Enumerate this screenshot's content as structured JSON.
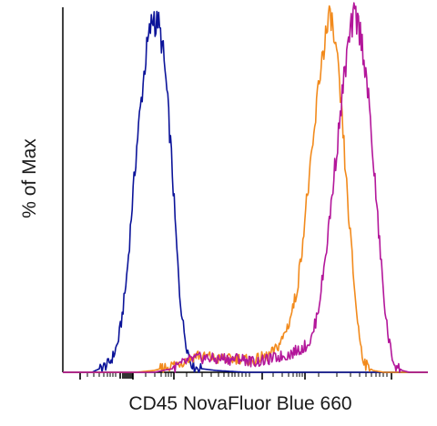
{
  "chart_data": {
    "type": "line",
    "title": "",
    "xlabel": "CD45 NovaFluor Blue 660",
    "ylabel": "% of Max",
    "x_scale": "log",
    "x_ticks_labeled": false,
    "y_ticks_labeled": false,
    "grid": false,
    "legend": "none",
    "series": [
      {
        "color": "#0b1399",
        "points": [
          [
            0.0,
            0
          ],
          [
            0.02,
            0
          ],
          [
            0.05,
            0
          ],
          [
            0.08,
            0
          ],
          [
            0.1,
            1
          ],
          [
            0.12,
            2
          ],
          [
            0.13,
            3
          ],
          [
            0.14,
            5
          ],
          [
            0.15,
            8
          ],
          [
            0.155,
            11
          ],
          [
            0.16,
            14
          ],
          [
            0.165,
            18
          ],
          [
            0.17,
            22
          ],
          [
            0.175,
            27
          ],
          [
            0.18,
            33
          ],
          [
            0.185,
            40
          ],
          [
            0.19,
            47
          ],
          [
            0.195,
            53
          ],
          [
            0.2,
            60
          ],
          [
            0.205,
            66
          ],
          [
            0.21,
            71
          ],
          [
            0.215,
            76
          ],
          [
            0.22,
            81
          ],
          [
            0.225,
            86
          ],
          [
            0.23,
            90
          ],
          [
            0.235,
            93
          ],
          [
            0.24,
            96
          ],
          [
            0.245,
            98
          ],
          [
            0.25,
            100
          ],
          [
            0.255,
            96
          ],
          [
            0.26,
            99
          ],
          [
            0.265,
            95
          ],
          [
            0.27,
            93
          ],
          [
            0.275,
            89
          ],
          [
            0.28,
            84
          ],
          [
            0.285,
            78
          ],
          [
            0.29,
            71
          ],
          [
            0.295,
            64
          ],
          [
            0.3,
            56
          ],
          [
            0.305,
            47
          ],
          [
            0.31,
            38
          ],
          [
            0.315,
            30
          ],
          [
            0.32,
            22
          ],
          [
            0.33,
            13
          ],
          [
            0.34,
            7
          ],
          [
            0.35,
            3
          ],
          [
            0.36,
            1.5
          ],
          [
            0.38,
            1
          ],
          [
            0.42,
            0.5
          ],
          [
            0.5,
            0
          ],
          [
            0.7,
            0
          ],
          [
            0.85,
            0
          ],
          [
            1.0,
            0
          ]
        ]
      },
      {
        "color": "#f28a1c",
        "points": [
          [
            0.0,
            0
          ],
          [
            0.2,
            0
          ],
          [
            0.25,
            0.5
          ],
          [
            0.3,
            2
          ],
          [
            0.33,
            3
          ],
          [
            0.35,
            4
          ],
          [
            0.37,
            5
          ],
          [
            0.38,
            4
          ],
          [
            0.4,
            4.5
          ],
          [
            0.42,
            3.5
          ],
          [
            0.44,
            4
          ],
          [
            0.46,
            3.5
          ],
          [
            0.48,
            4
          ],
          [
            0.5,
            3.5
          ],
          [
            0.52,
            3
          ],
          [
            0.54,
            4
          ],
          [
            0.56,
            4.5
          ],
          [
            0.58,
            6
          ],
          [
            0.6,
            9
          ],
          [
            0.62,
            14
          ],
          [
            0.64,
            22
          ],
          [
            0.65,
            30
          ],
          [
            0.66,
            40
          ],
          [
            0.67,
            50
          ],
          [
            0.68,
            58
          ],
          [
            0.69,
            68
          ],
          [
            0.7,
            80
          ],
          [
            0.71,
            88
          ],
          [
            0.72,
            94
          ],
          [
            0.73,
            98
          ],
          [
            0.735,
            100
          ],
          [
            0.74,
            95
          ],
          [
            0.75,
            88
          ],
          [
            0.76,
            77
          ],
          [
            0.77,
            63
          ],
          [
            0.78,
            48
          ],
          [
            0.79,
            35
          ],
          [
            0.8,
            22
          ],
          [
            0.81,
            12
          ],
          [
            0.82,
            5
          ],
          [
            0.83,
            2
          ],
          [
            0.85,
            0.5
          ],
          [
            0.88,
            0
          ],
          [
            1.0,
            0
          ]
        ]
      },
      {
        "color": "#b3169a",
        "points": [
          [
            0.0,
            0
          ],
          [
            0.25,
            0
          ],
          [
            0.3,
            1
          ],
          [
            0.33,
            2.5
          ],
          [
            0.35,
            3.5
          ],
          [
            0.37,
            4
          ],
          [
            0.4,
            4
          ],
          [
            0.42,
            3.5
          ],
          [
            0.44,
            4
          ],
          [
            0.46,
            3.5
          ],
          [
            0.48,
            4
          ],
          [
            0.5,
            3.5
          ],
          [
            0.52,
            3
          ],
          [
            0.54,
            3
          ],
          [
            0.56,
            3.5
          ],
          [
            0.58,
            4
          ],
          [
            0.6,
            4.5
          ],
          [
            0.62,
            5
          ],
          [
            0.64,
            6
          ],
          [
            0.66,
            7
          ],
          [
            0.68,
            9
          ],
          [
            0.69,
            13
          ],
          [
            0.7,
            18
          ],
          [
            0.71,
            25
          ],
          [
            0.72,
            33
          ],
          [
            0.73,
            42
          ],
          [
            0.74,
            52
          ],
          [
            0.75,
            62
          ],
          [
            0.76,
            72
          ],
          [
            0.77,
            82
          ],
          [
            0.78,
            90
          ],
          [
            0.79,
            96
          ],
          [
            0.8,
            100
          ],
          [
            0.81,
            97
          ],
          [
            0.82,
            92
          ],
          [
            0.83,
            84
          ],
          [
            0.84,
            73
          ],
          [
            0.85,
            60
          ],
          [
            0.86,
            46
          ],
          [
            0.87,
            33
          ],
          [
            0.88,
            20
          ],
          [
            0.89,
            11
          ],
          [
            0.9,
            5
          ],
          [
            0.91,
            2
          ],
          [
            0.93,
            0.5
          ],
          [
            0.95,
            0
          ],
          [
            1.0,
            0
          ]
        ]
      }
    ]
  }
}
